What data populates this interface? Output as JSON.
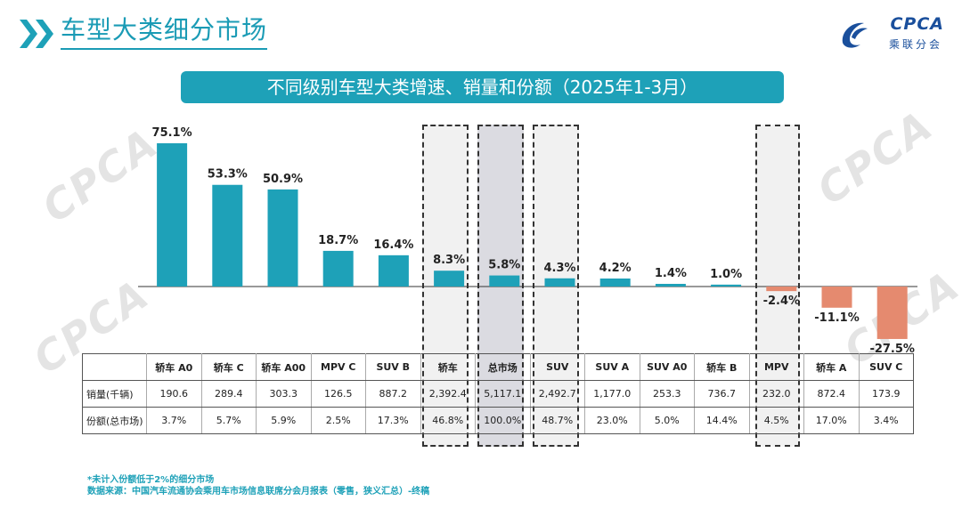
{
  "header": {
    "title": "车型大类细分市场",
    "logo_top": "CPCA",
    "logo_bottom": "乘联分会"
  },
  "banner": {
    "title": "不同级别车型大类增速、销量和份额（2025年1-3月）"
  },
  "watermark_text": "CPCA",
  "colors": {
    "accent": "#1ea1b8",
    "positive_bar": "#1ea1b8",
    "negative_bar": "#e58a6f",
    "note_text": "#1ea1b8"
  },
  "chart_data": {
    "type": "bar",
    "categories": [
      "轿车 A0",
      "轿车 C",
      "轿车 A00",
      "MPV C",
      "SUV B",
      "轿车",
      "总市场",
      "SUV",
      "SUV A",
      "SUV A0",
      "轿车 B",
      "MPV",
      "轿车 A",
      "SUV C"
    ],
    "values": [
      75.1,
      53.3,
      50.9,
      18.7,
      16.4,
      8.3,
      5.8,
      4.3,
      4.2,
      1.4,
      1.0,
      -2.4,
      -11.1,
      -27.5
    ],
    "value_labels": [
      "75.1%",
      "53.3%",
      "50.9%",
      "18.7%",
      "16.4%",
      "8.3%",
      "5.8%",
      "4.3%",
      "4.2%",
      "1.4%",
      "1.0%",
      "-2.4%",
      "-11.1%",
      "-27.5%"
    ],
    "highlighted": [
      "轿车",
      "总市场",
      "SUV",
      "MPV"
    ],
    "ylim": [
      -30,
      80
    ],
    "title": "不同级别车型大类增速、销量和份额（2025年1-3月）",
    "xlabel": "",
    "ylabel": ""
  },
  "table": {
    "header_blank": "",
    "rows": [
      {
        "label": "销量(千辆)",
        "values": [
          "190.6",
          "289.4",
          "303.3",
          "126.5",
          "887.2",
          "2,392.4",
          "5,117.1",
          "2,492.7",
          "1,177.0",
          "253.3",
          "736.7",
          "232.0",
          "872.4",
          "173.9"
        ]
      },
      {
        "label": "份额(总市场)",
        "values": [
          "3.7%",
          "5.7%",
          "5.9%",
          "2.5%",
          "17.3%",
          "46.8%",
          "100.0%",
          "48.7%",
          "23.0%",
          "5.0%",
          "14.4%",
          "4.5%",
          "17.0%",
          "3.4%"
        ]
      }
    ]
  },
  "notes": {
    "line1": "*未计入份额低于2%的细分市场",
    "line2": "数据来源：中国汽车流通协会乘用车市场信息联席分会月报表（零售，狭义汇总）-终稿"
  }
}
